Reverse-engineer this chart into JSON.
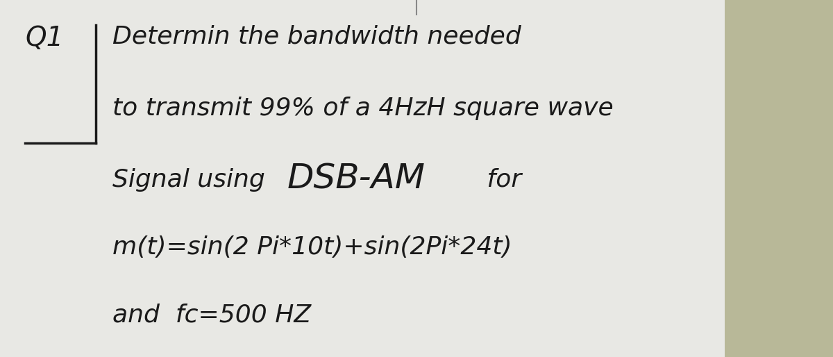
{
  "background_color": "#b8b898",
  "paper_color": "#e8e8e4",
  "text_color": "#1a1a1a",
  "font_size_main": 26,
  "figsize": [
    12.0,
    5.14
  ],
  "dpi": 100,
  "q1_text": "Q1",
  "line1": "Determin the bandwidth needed",
  "line2": "to transmit 99% of a 4HzH square wave",
  "line3_pre": "Signal using ",
  "line3_dsb": "DSB-AM",
  "line3_post": " for",
  "line4": "m(t)=sin(2 Pi*10t)+sin(2Pi*24t)",
  "line5": "and  fc=500 HZ"
}
